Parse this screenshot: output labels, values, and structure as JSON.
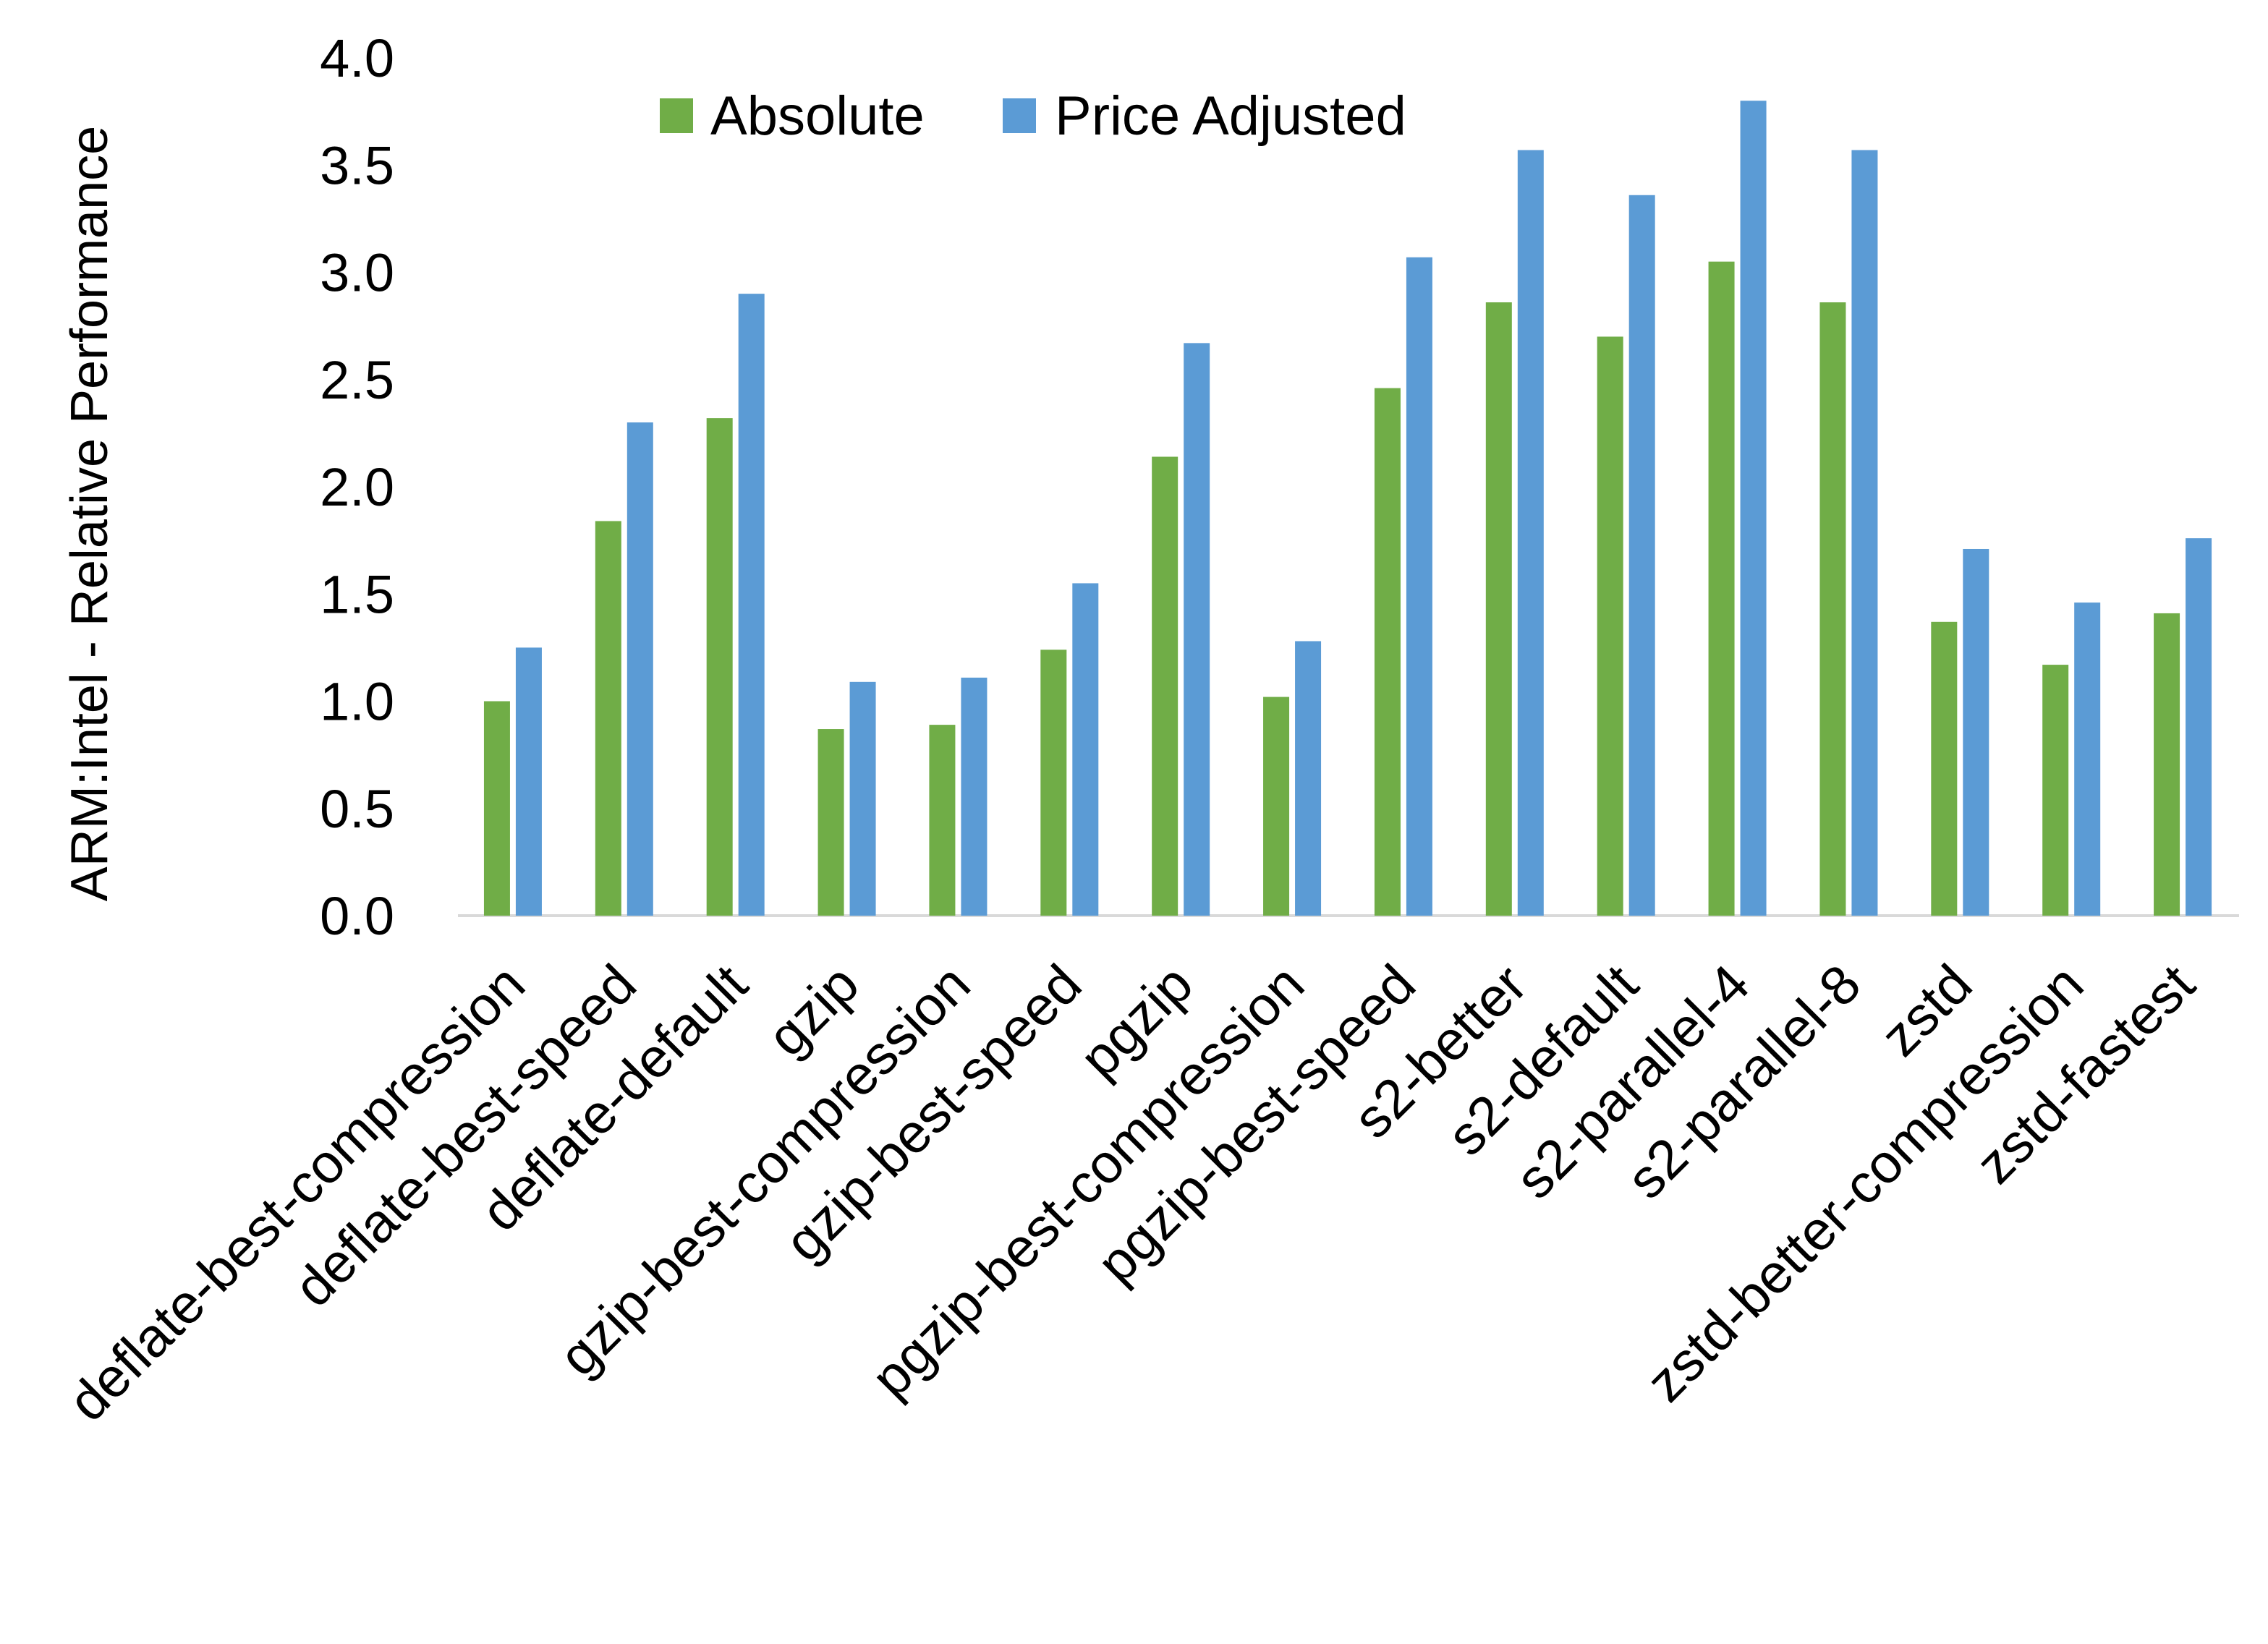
{
  "chart_data": {
    "type": "bar",
    "title": "",
    "xlabel": "",
    "ylabel": "ARM:Intel - Relative Performance",
    "ylim": [
      0,
      4.0
    ],
    "yticks": [
      "0.0",
      "0.5",
      "1.0",
      "1.5",
      "2.0",
      "2.5",
      "3.0",
      "3.5",
      "4.0"
    ],
    "grid": false,
    "legend_position": "top",
    "categories": [
      "deflate-best-compression",
      "deflate-best-speed",
      "deflate-default",
      "gzip",
      "gzip-best-compression",
      "gzip-best-speed",
      "pgzip",
      "pgzip-best-compression",
      "pgzip-best-speed",
      "s2-better",
      "s2-default",
      "s2-parallel-4",
      "s2-parallel-8",
      "zstd",
      "zstd-better-compression",
      "zstd-fastest"
    ],
    "series": [
      {
        "name": "Absolute",
        "color": "#70ad47",
        "values": [
          1.0,
          1.84,
          2.32,
          0.87,
          0.89,
          1.24,
          2.14,
          1.02,
          2.46,
          2.86,
          2.7,
          3.05,
          2.86,
          1.37,
          1.17,
          1.41
        ]
      },
      {
        "name": "Price Adjusted",
        "color": "#5b9bd5",
        "values": [
          1.25,
          2.3,
          2.9,
          1.09,
          1.11,
          1.55,
          2.67,
          1.28,
          3.07,
          3.57,
          3.36,
          3.8,
          3.57,
          1.71,
          1.46,
          1.76
        ]
      }
    ]
  }
}
